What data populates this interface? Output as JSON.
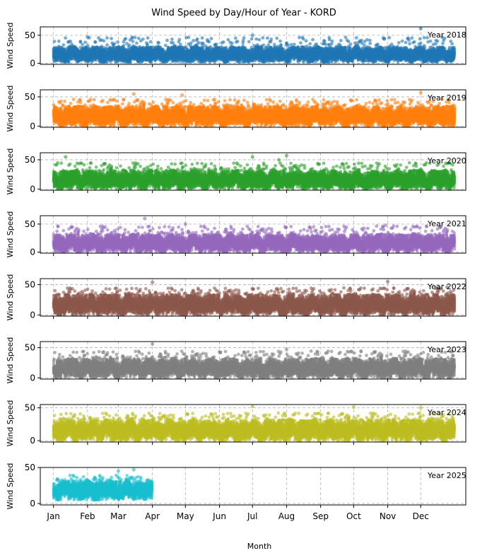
{
  "chart_data": {
    "type": "scatter",
    "title": "Wind Speed by Day/Hour of Year - KORD",
    "xlabel": "Month",
    "ylabel": "Wind Speed",
    "x_ticks": [
      "Jan",
      "Feb",
      "Mar",
      "Apr",
      "May",
      "Jun",
      "Jul",
      "Aug",
      "Sep",
      "Oct",
      "Nov",
      "Dec"
    ],
    "xlim": [
      "Jan 1",
      "Dec 31"
    ],
    "y_ticks": [
      0,
      50
    ],
    "grid": true,
    "series": [
      {
        "name": "Year 2018",
        "color": "#1f77b4",
        "ylim": [
          -2,
          65
        ],
        "coverage": [
          "Jan 1",
          "Dec 31"
        ],
        "typical_range": [
          2,
          28
        ],
        "max": 62,
        "peaks": [
          {
            "date": "Jul 1",
            "value": 50
          },
          {
            "date": "Dec 1",
            "value": 62
          },
          {
            "date": "Feb 1",
            "value": 47
          }
        ]
      },
      {
        "name": "Year 2019",
        "color": "#ff7f0e",
        "ylim": [
          -2,
          62
        ],
        "coverage": [
          "Jan 1",
          "Dec 31"
        ],
        "typical_range": [
          0,
          32
        ],
        "max": 57,
        "peaks": [
          {
            "date": "Mar 15",
            "value": 55
          },
          {
            "date": "Apr 28",
            "value": 53
          },
          {
            "date": "Dec 1",
            "value": 57
          }
        ]
      },
      {
        "name": "Year 2020",
        "color": "#2ca02c",
        "ylim": [
          -2,
          62
        ],
        "coverage": [
          "Jan 1",
          "Dec 31"
        ],
        "typical_range": [
          0,
          30
        ],
        "max": 57,
        "peaks": [
          {
            "date": "Jan 12",
            "value": 55
          },
          {
            "date": "Jul 1",
            "value": 55
          },
          {
            "date": "Aug 1",
            "value": 57
          },
          {
            "date": "Jul 25",
            "value": 50
          }
        ]
      },
      {
        "name": "Year 2021",
        "color": "#9467bd",
        "ylim": [
          -2,
          65
        ],
        "coverage": [
          "Jan 1",
          "Dec 31"
        ],
        "typical_range": [
          0,
          30
        ],
        "max": 60,
        "peaks": [
          {
            "date": "Mar 25",
            "value": 60
          },
          {
            "date": "Oct 30",
            "value": 48
          },
          {
            "date": "May 1",
            "value": 50
          }
        ]
      },
      {
        "name": "Year 2022",
        "color": "#8c564b",
        "ylim": [
          -2,
          60
        ],
        "coverage": [
          "Jan 1",
          "Dec 31"
        ],
        "typical_range": [
          0,
          32
        ],
        "max": 55,
        "peaks": [
          {
            "date": "Apr 1",
            "value": 54
          },
          {
            "date": "Nov 1",
            "value": 55
          },
          {
            "date": "Dec 25",
            "value": 46
          }
        ]
      },
      {
        "name": "Year 2023",
        "color": "#7f7f7f",
        "ylim": [
          -2,
          60
        ],
        "coverage": [
          "Jan 1",
          "Dec 31"
        ],
        "typical_range": [
          0,
          30
        ],
        "max": 56,
        "peaks": [
          {
            "date": "Apr 1",
            "value": 56
          },
          {
            "date": "Aug 1",
            "value": 47
          },
          {
            "date": "Feb 15",
            "value": 42
          }
        ]
      },
      {
        "name": "Year 2024",
        "color": "#bcbd22",
        "ylim": [
          -2,
          55
        ],
        "coverage": [
          "Jan 1",
          "Dec 31"
        ],
        "typical_range": [
          0,
          30
        ],
        "max": 52,
        "peaks": [
          {
            "date": "Jul 1",
            "value": 52
          },
          {
            "date": "Oct 1",
            "value": 51
          },
          {
            "date": "Dec 1",
            "value": 50
          }
        ]
      },
      {
        "name": "Year 2025",
        "color": "#17becf",
        "ylim": [
          -2,
          50
        ],
        "coverage": [
          "Jan 1",
          "Mar 31"
        ],
        "typical_range": [
          5,
          30
        ],
        "max": 47,
        "peaks": [
          {
            "date": "Mar 15",
            "value": 47
          },
          {
            "date": "Mar 1",
            "value": 45
          }
        ]
      }
    ]
  }
}
